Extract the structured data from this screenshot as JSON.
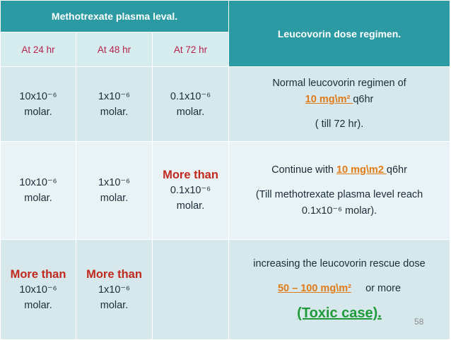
{
  "header": {
    "plasma_level_title": "Methotrexate plasma leval.",
    "regimen_title": "Leucovorin dose regimen.",
    "col_24": "At 24 hr",
    "col_48": "At 48 hr",
    "col_72": "At 72 hr"
  },
  "rows": [
    {
      "c24": "10x10⁻⁶",
      "c24b": "molar.",
      "c48": "1x10⁻⁶",
      "c48b": "molar.",
      "c72": "0.1x10⁻⁶",
      "c72b": "molar.",
      "reg_line1": "Normal leucovorin regimen of",
      "reg_dose": "10 mg\\m² ",
      "reg_after": "q6hr",
      "reg_line3": "( till 72 hr)."
    },
    {
      "c24": "10x10⁻⁶",
      "c24b": "molar.",
      "c48": "1x10⁻⁶",
      "c48b": "molar.",
      "c72_more": "More than",
      "c72": "0.1x10⁻⁶",
      "c72b": "molar.",
      "reg_before": "Continue with ",
      "reg_dose": "10 mg\\m2 ",
      "reg_after": "q6hr",
      "reg_line2": "(Till methotrexate plasma level reach",
      "reg_line3": "0.1x10⁻⁶ molar)."
    },
    {
      "c24_more": "More than",
      "c24": "10x10⁻⁶",
      "c24b": "molar.",
      "c48_more": "More than",
      "c48": "1x10⁻⁶",
      "c48b": "molar.",
      "reg_line1": "increasing the leucovorin rescue dose",
      "reg_dose": "50 – 100 mg\\m²",
      "reg_after": "or more",
      "reg_toxic": "(Toxic case)."
    }
  ],
  "page_number": "58"
}
